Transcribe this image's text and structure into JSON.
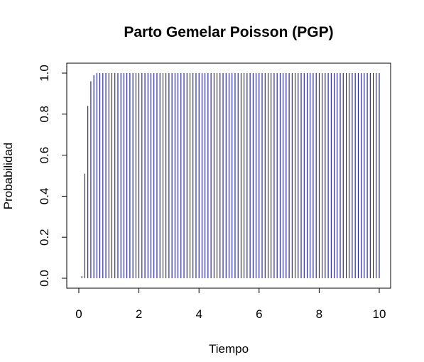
{
  "chart_data": {
    "type": "bar",
    "title": "Parto Gemelar Poisson (PGP)",
    "xlabel": "Tiempo",
    "ylabel": "Probabilidad",
    "xlim": [
      0,
      10
    ],
    "ylim": [
      0,
      1
    ],
    "x_ticks": [
      "0",
      "2",
      "4",
      "6",
      "8",
      "10"
    ],
    "y_ticks": [
      "0.0",
      "0.2",
      "0.4",
      "0.6",
      "0.8",
      "1.0"
    ],
    "grid": false,
    "legend": "none",
    "color": "#00008b",
    "x": [
      0.0,
      0.1,
      0.2,
      0.3,
      0.4,
      0.5,
      0.6,
      0.7,
      0.8,
      0.9,
      1.0,
      1.1,
      1.2,
      1.3,
      1.4,
      1.5,
      1.6,
      1.7,
      1.8,
      1.9,
      2.0,
      2.1,
      2.2,
      2.3,
      2.4,
      2.5,
      2.6,
      2.7,
      2.8,
      2.9,
      3.0,
      3.1,
      3.2,
      3.3,
      3.4,
      3.5,
      3.6,
      3.7,
      3.8,
      3.9,
      4.0,
      4.1,
      4.2,
      4.3,
      4.4,
      4.5,
      4.6,
      4.7,
      4.8,
      4.9,
      5.0,
      5.1,
      5.2,
      5.3,
      5.4,
      5.5,
      5.6,
      5.7,
      5.8,
      5.9,
      6.0,
      6.1,
      6.2,
      6.3,
      6.4,
      6.5,
      6.6,
      6.7,
      6.8,
      6.9,
      7.0,
      7.1,
      7.2,
      7.3,
      7.4,
      7.5,
      7.6,
      7.7,
      7.8,
      7.9,
      8.0,
      8.1,
      8.2,
      8.3,
      8.4,
      8.5,
      8.6,
      8.7,
      8.8,
      8.9,
      9.0,
      9.1,
      9.2,
      9.3,
      9.4,
      9.5,
      9.6,
      9.7,
      9.8,
      9.9,
      10.0
    ],
    "values": [
      0.0,
      0.01,
      0.51,
      0.84,
      0.96,
      0.99,
      1.0,
      1.0,
      1.0,
      1.0,
      1.0,
      1.0,
      1.0,
      1.0,
      1.0,
      1.0,
      1.0,
      1.0,
      1.0,
      1.0,
      1.0,
      1.0,
      1.0,
      1.0,
      1.0,
      1.0,
      1.0,
      1.0,
      1.0,
      1.0,
      1.0,
      1.0,
      1.0,
      1.0,
      1.0,
      1.0,
      1.0,
      1.0,
      1.0,
      1.0,
      1.0,
      1.0,
      1.0,
      1.0,
      1.0,
      1.0,
      1.0,
      1.0,
      1.0,
      1.0,
      1.0,
      1.0,
      1.0,
      1.0,
      1.0,
      1.0,
      1.0,
      1.0,
      1.0,
      1.0,
      1.0,
      1.0,
      1.0,
      1.0,
      1.0,
      1.0,
      1.0,
      1.0,
      1.0,
      1.0,
      1.0,
      1.0,
      1.0,
      1.0,
      1.0,
      1.0,
      1.0,
      1.0,
      1.0,
      1.0,
      1.0,
      1.0,
      1.0,
      1.0,
      1.0,
      1.0,
      1.0,
      1.0,
      1.0,
      1.0,
      1.0,
      1.0,
      1.0,
      1.0,
      1.0,
      1.0,
      1.0,
      1.0,
      1.0,
      1.0,
      1.0
    ]
  }
}
